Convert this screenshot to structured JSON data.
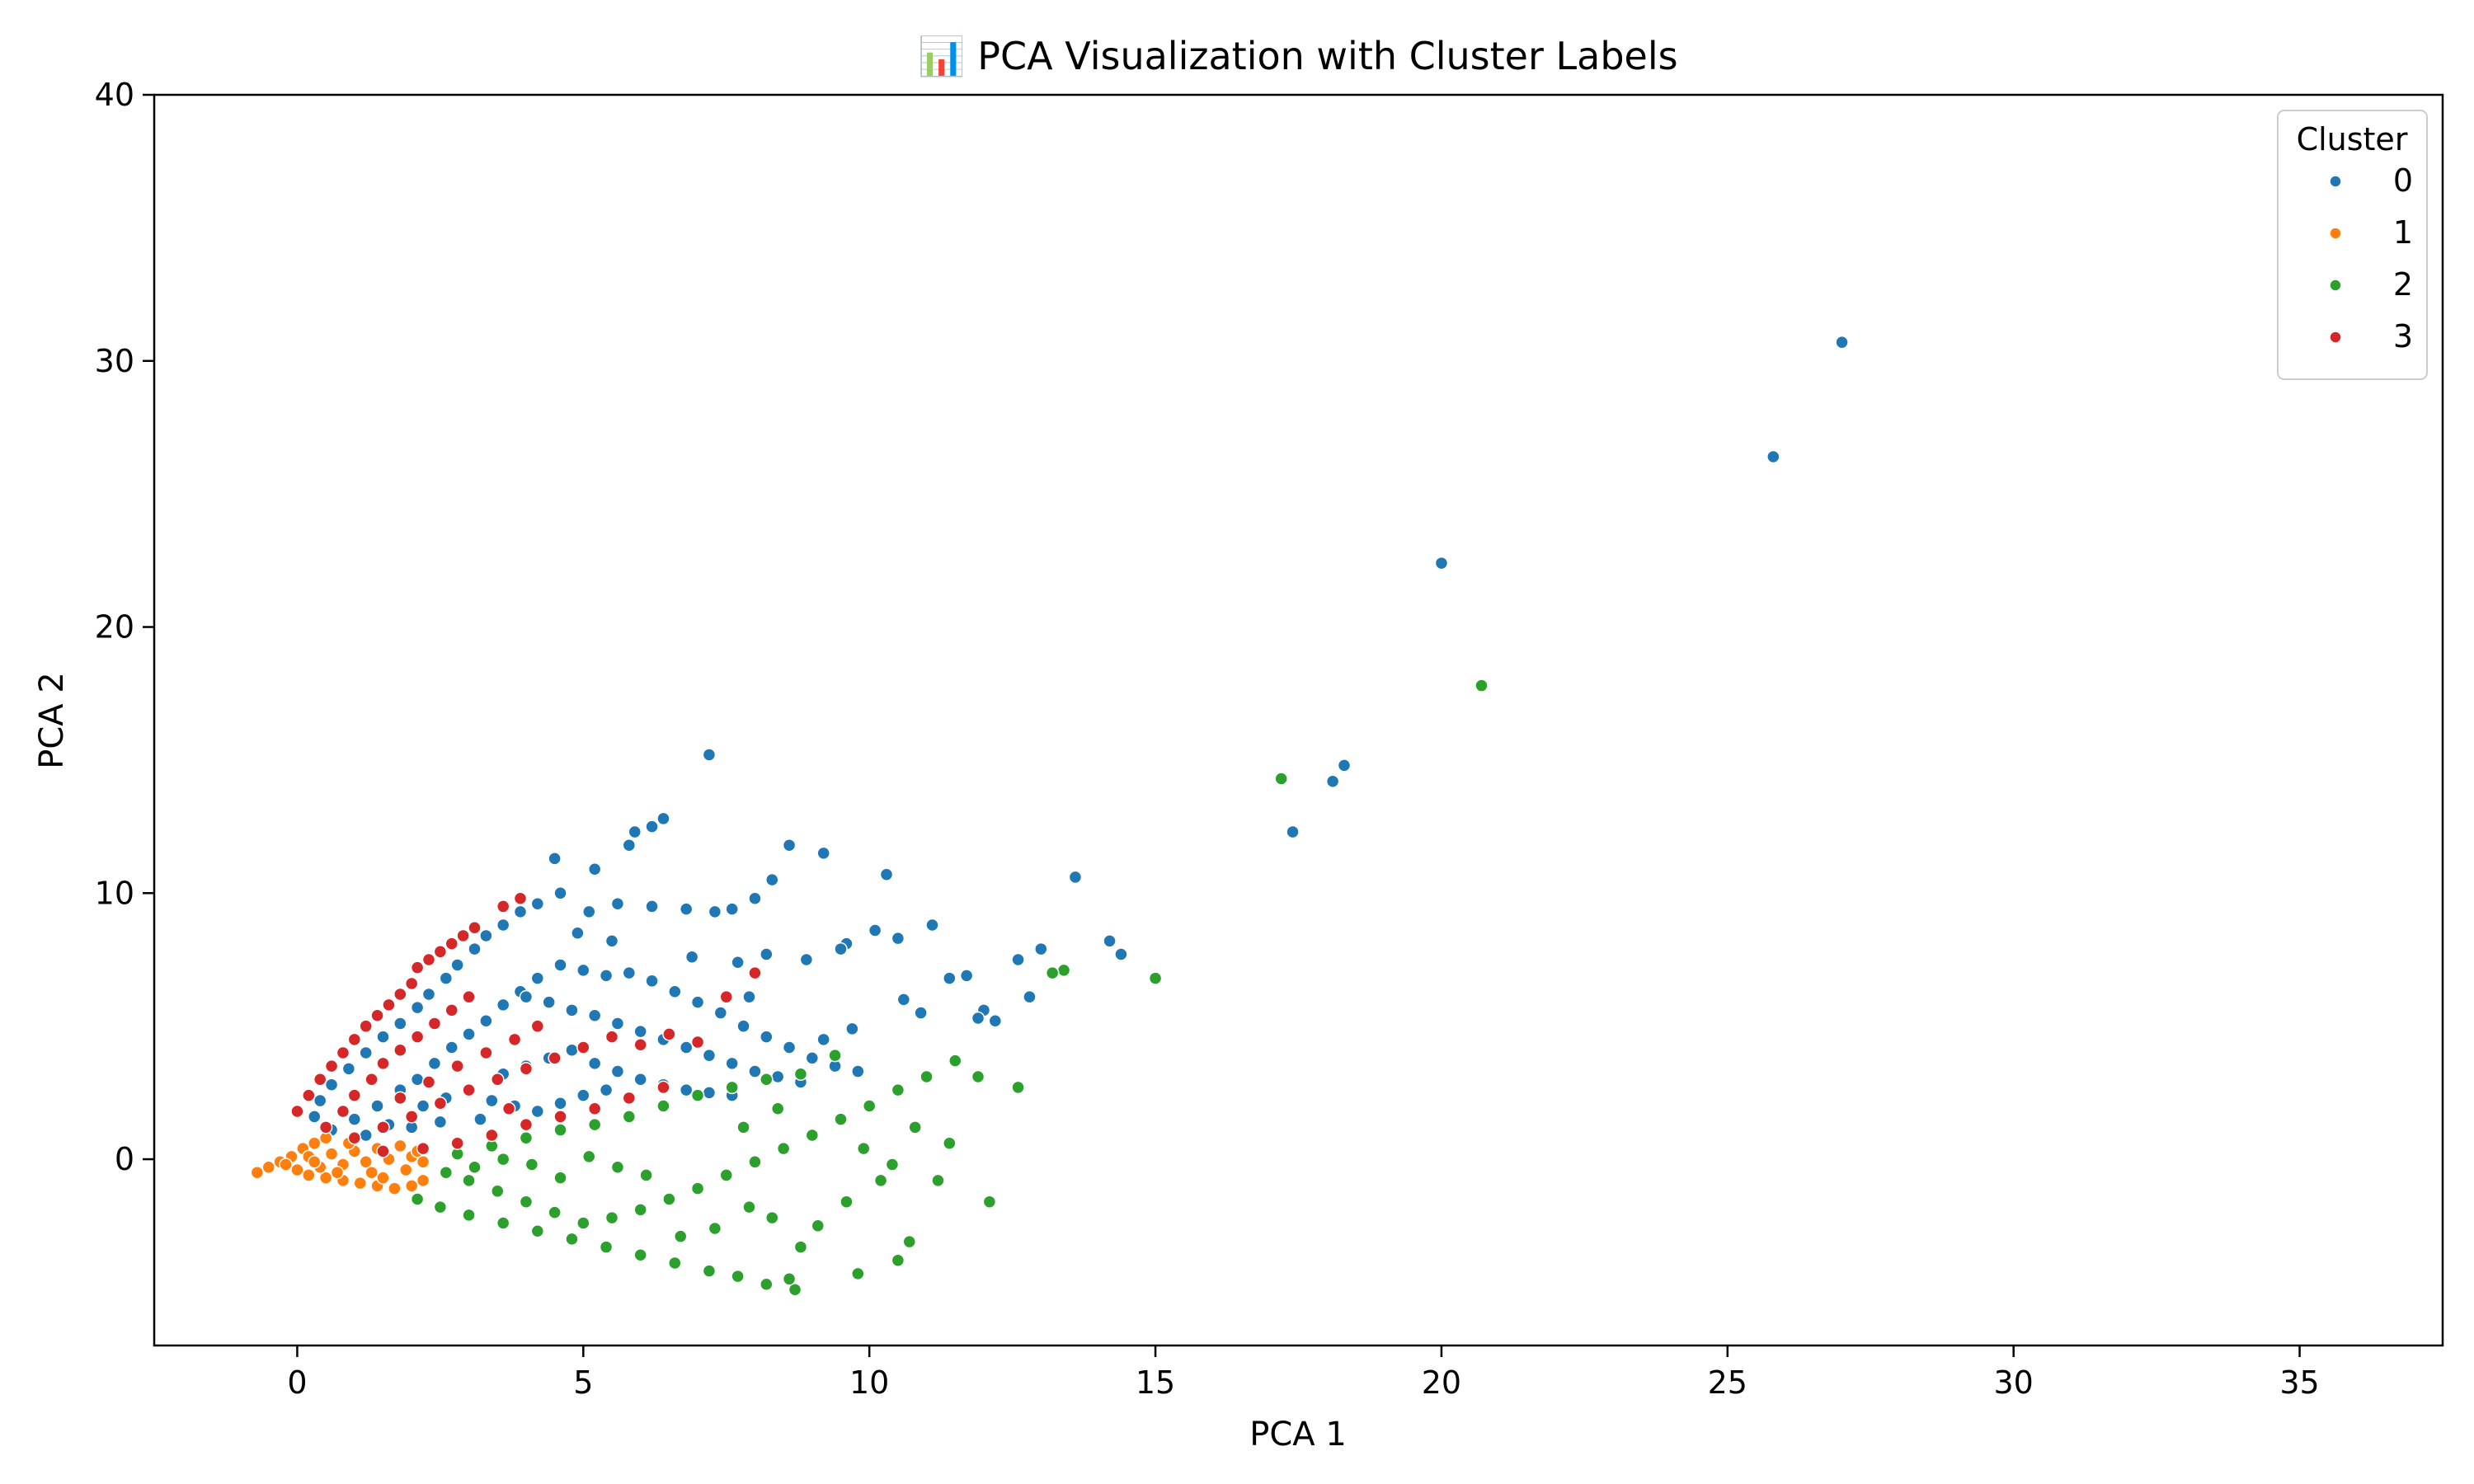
{
  "chart_data": {
    "type": "scatter",
    "title": "📊 PCA Visualization with Cluster Labels",
    "xlabel": "PCA 1",
    "ylabel": "PCA 2",
    "xlim": [
      -2.5,
      37.5
    ],
    "ylim": [
      -7,
      40
    ],
    "xticks": [
      0,
      5,
      10,
      15,
      20,
      25,
      30,
      35
    ],
    "yticks": [
      0,
      10,
      20,
      30,
      40
    ],
    "grid": false,
    "legend": {
      "title": "Cluster",
      "placement": "top-right"
    },
    "series": [
      {
        "name": "0",
        "color": "#1f77b4",
        "points": [
          [
            27.0,
            30.7
          ],
          [
            25.8,
            26.4
          ],
          [
            20.0,
            22.4
          ],
          [
            18.3,
            14.8
          ],
          [
            18.1,
            14.2
          ],
          [
            17.4,
            12.3
          ],
          [
            7.2,
            15.2
          ],
          [
            14.2,
            8.2
          ],
          [
            14.4,
            7.7
          ],
          [
            13.6,
            10.6
          ],
          [
            12.6,
            7.5
          ],
          [
            13.0,
            7.9
          ],
          [
            12.0,
            5.6
          ],
          [
            11.1,
            8.8
          ],
          [
            10.3,
            10.7
          ],
          [
            10.5,
            8.3
          ],
          [
            9.2,
            11.5
          ],
          [
            8.6,
            11.8
          ],
          [
            6.4,
            12.8
          ],
          [
            6.2,
            12.5
          ],
          [
            5.9,
            12.3
          ],
          [
            5.8,
            11.8
          ],
          [
            5.2,
            10.9
          ],
          [
            4.5,
            11.3
          ],
          [
            11.7,
            6.9
          ],
          [
            12.2,
            5.2
          ],
          [
            12.8,
            6.1
          ],
          [
            11.4,
            6.8
          ],
          [
            10.9,
            5.5
          ],
          [
            10.1,
            8.6
          ],
          [
            9.6,
            8.1
          ],
          [
            8.9,
            7.5
          ],
          [
            8.2,
            7.7
          ],
          [
            7.7,
            7.4
          ],
          [
            7.3,
            9.3
          ],
          [
            7.6,
            9.4
          ],
          [
            8.0,
            9.8
          ],
          [
            8.3,
            10.5
          ],
          [
            6.8,
            9.4
          ],
          [
            6.2,
            9.5
          ],
          [
            5.6,
            9.6
          ],
          [
            5.1,
            9.3
          ],
          [
            4.6,
            10.0
          ],
          [
            4.2,
            9.6
          ],
          [
            3.9,
            9.3
          ],
          [
            3.6,
            8.8
          ],
          [
            3.3,
            8.4
          ],
          [
            3.1,
            7.9
          ],
          [
            2.8,
            7.3
          ],
          [
            2.6,
            6.8
          ],
          [
            2.3,
            6.2
          ],
          [
            2.1,
            5.7
          ],
          [
            1.8,
            5.1
          ],
          [
            1.5,
            4.6
          ],
          [
            1.2,
            4.0
          ],
          [
            0.9,
            3.4
          ],
          [
            0.6,
            2.8
          ],
          [
            0.4,
            2.2
          ],
          [
            0.3,
            1.6
          ],
          [
            0.6,
            1.1
          ],
          [
            1.0,
            1.5
          ],
          [
            1.4,
            2.0
          ],
          [
            1.8,
            2.6
          ],
          [
            2.1,
            3.0
          ],
          [
            2.4,
            3.6
          ],
          [
            2.7,
            4.2
          ],
          [
            3.0,
            4.7
          ],
          [
            3.3,
            5.2
          ],
          [
            3.6,
            5.8
          ],
          [
            3.9,
            6.3
          ],
          [
            4.2,
            6.8
          ],
          [
            4.6,
            7.3
          ],
          [
            5.0,
            7.1
          ],
          [
            5.4,
            6.9
          ],
          [
            5.8,
            7.0
          ],
          [
            6.2,
            6.7
          ],
          [
            6.6,
            6.3
          ],
          [
            7.0,
            5.9
          ],
          [
            7.4,
            5.5
          ],
          [
            7.8,
            5.0
          ],
          [
            8.2,
            4.6
          ],
          [
            8.6,
            4.2
          ],
          [
            9.0,
            3.8
          ],
          [
            9.4,
            3.5
          ],
          [
            9.8,
            3.3
          ],
          [
            8.8,
            2.9
          ],
          [
            8.4,
            3.1
          ],
          [
            8.0,
            3.3
          ],
          [
            7.6,
            3.6
          ],
          [
            7.2,
            3.9
          ],
          [
            6.8,
            4.2
          ],
          [
            6.4,
            4.5
          ],
          [
            6.0,
            4.8
          ],
          [
            5.6,
            5.1
          ],
          [
            5.2,
            5.4
          ],
          [
            4.8,
            5.6
          ],
          [
            4.4,
            5.9
          ],
          [
            4.0,
            6.1
          ],
          [
            3.6,
            3.2
          ],
          [
            4.0,
            3.5
          ],
          [
            4.4,
            3.8
          ],
          [
            4.8,
            4.1
          ],
          [
            5.2,
            3.6
          ],
          [
            5.6,
            3.3
          ],
          [
            6.0,
            3.0
          ],
          [
            6.4,
            2.8
          ],
          [
            6.8,
            2.6
          ],
          [
            7.2,
            2.5
          ],
          [
            7.6,
            2.4
          ],
          [
            2.2,
            2.0
          ],
          [
            2.6,
            2.3
          ],
          [
            3.0,
            2.6
          ],
          [
            3.4,
            2.2
          ],
          [
            3.8,
            2.0
          ],
          [
            4.2,
            1.8
          ],
          [
            4.6,
            2.1
          ],
          [
            5.0,
            2.4
          ],
          [
            5.4,
            2.6
          ],
          [
            2.0,
            1.2
          ],
          [
            2.5,
            1.4
          ],
          [
            3.2,
            1.5
          ],
          [
            1.2,
            0.9
          ],
          [
            1.6,
            1.3
          ],
          [
            9.2,
            4.5
          ],
          [
            9.7,
            4.9
          ],
          [
            10.6,
            6.0
          ],
          [
            11.9,
            5.3
          ],
          [
            9.5,
            7.9
          ],
          [
            7.9,
            6.1
          ],
          [
            6.9,
            7.6
          ],
          [
            5.5,
            8.2
          ],
          [
            4.9,
            8.5
          ]
        ]
      },
      {
        "name": "1",
        "color": "#ff7f0e",
        "points": [
          [
            -0.7,
            -0.5
          ],
          [
            -0.5,
            -0.3
          ],
          [
            -0.3,
            -0.1
          ],
          [
            -0.1,
            0.1
          ],
          [
            0.1,
            0.4
          ],
          [
            0.3,
            0.6
          ],
          [
            0.5,
            0.8
          ],
          [
            0.2,
            -0.6
          ],
          [
            0.5,
            -0.7
          ],
          [
            0.8,
            -0.8
          ],
          [
            1.1,
            -0.9
          ],
          [
            1.4,
            -1.0
          ],
          [
            1.7,
            -1.1
          ],
          [
            2.0,
            -1.0
          ],
          [
            2.2,
            -0.8
          ],
          [
            0.0,
            -0.4
          ],
          [
            0.4,
            -0.3
          ],
          [
            0.8,
            -0.2
          ],
          [
            1.2,
            -0.1
          ],
          [
            1.6,
            0.0
          ],
          [
            2.0,
            0.1
          ],
          [
            0.2,
            0.1
          ],
          [
            0.6,
            0.2
          ],
          [
            1.0,
            0.3
          ],
          [
            1.4,
            0.4
          ],
          [
            1.8,
            0.5
          ],
          [
            0.7,
            -0.5
          ],
          [
            1.3,
            -0.5
          ],
          [
            1.9,
            -0.4
          ],
          [
            2.2,
            -0.1
          ],
          [
            0.9,
            0.6
          ],
          [
            -0.2,
            -0.2
          ],
          [
            0.3,
            -0.1
          ],
          [
            1.5,
            -0.7
          ],
          [
            2.1,
            0.3
          ]
        ]
      },
      {
        "name": "2",
        "color": "#2ca02c",
        "points": [
          [
            20.7,
            17.8
          ],
          [
            17.2,
            14.3
          ],
          [
            15.0,
            6.8
          ],
          [
            13.4,
            7.1
          ],
          [
            13.2,
            7.0
          ],
          [
            12.6,
            2.7
          ],
          [
            12.1,
            -1.6
          ],
          [
            11.2,
            -0.8
          ],
          [
            10.7,
            -3.1
          ],
          [
            10.5,
            -3.8
          ],
          [
            9.8,
            -4.3
          ],
          [
            8.7,
            -4.9
          ],
          [
            8.6,
            -4.5
          ],
          [
            8.2,
            -4.7
          ],
          [
            7.7,
            -4.4
          ],
          [
            7.2,
            -4.2
          ],
          [
            6.6,
            -3.9
          ],
          [
            6.0,
            -3.6
          ],
          [
            5.4,
            -3.3
          ],
          [
            4.8,
            -3.0
          ],
          [
            4.2,
            -2.7
          ],
          [
            3.6,
            -2.4
          ],
          [
            3.0,
            -2.1
          ],
          [
            2.5,
            -1.8
          ],
          [
            2.1,
            -1.5
          ],
          [
            11.9,
            3.1
          ],
          [
            11.5,
            3.7
          ],
          [
            11.0,
            3.1
          ],
          [
            10.5,
            2.6
          ],
          [
            10.0,
            2.0
          ],
          [
            9.5,
            1.5
          ],
          [
            9.0,
            0.9
          ],
          [
            8.5,
            0.4
          ],
          [
            8.0,
            -0.1
          ],
          [
            7.5,
            -0.6
          ],
          [
            7.0,
            -1.1
          ],
          [
            6.5,
            -1.5
          ],
          [
            6.0,
            -1.9
          ],
          [
            5.5,
            -2.2
          ],
          [
            5.0,
            -2.4
          ],
          [
            4.5,
            -2.0
          ],
          [
            4.0,
            -1.6
          ],
          [
            3.5,
            -1.2
          ],
          [
            3.0,
            -0.8
          ],
          [
            2.6,
            -0.5
          ],
          [
            2.8,
            0.2
          ],
          [
            3.4,
            0.5
          ],
          [
            4.0,
            0.8
          ],
          [
            4.6,
            1.1
          ],
          [
            5.2,
            1.3
          ],
          [
            5.8,
            1.6
          ],
          [
            6.4,
            2.0
          ],
          [
            7.0,
            2.4
          ],
          [
            7.6,
            2.7
          ],
          [
            8.2,
            3.0
          ],
          [
            8.8,
            3.2
          ],
          [
            9.4,
            3.9
          ],
          [
            10.8,
            1.2
          ],
          [
            11.4,
            0.6
          ],
          [
            10.2,
            -0.8
          ],
          [
            9.6,
            -1.6
          ],
          [
            9.1,
            -2.5
          ],
          [
            8.8,
            -3.3
          ],
          [
            8.3,
            -2.2
          ],
          [
            7.9,
            -1.8
          ],
          [
            7.3,
            -2.6
          ],
          [
            6.7,
            -2.9
          ],
          [
            6.1,
            -0.6
          ],
          [
            5.6,
            -0.3
          ],
          [
            5.1,
            0.1
          ],
          [
            4.6,
            -0.7
          ],
          [
            4.1,
            -0.2
          ],
          [
            3.6,
            0.0
          ],
          [
            3.1,
            -0.3
          ],
          [
            9.9,
            0.4
          ],
          [
            10.4,
            -0.2
          ],
          [
            8.4,
            1.9
          ],
          [
            7.8,
            1.2
          ]
        ]
      },
      {
        "name": "3",
        "color": "#d62728",
        "points": [
          [
            3.1,
            8.7
          ],
          [
            2.9,
            8.4
          ],
          [
            2.7,
            8.1
          ],
          [
            2.5,
            7.8
          ],
          [
            2.3,
            7.5
          ],
          [
            2.1,
            7.2
          ],
          [
            2.0,
            6.6
          ],
          [
            1.8,
            6.2
          ],
          [
            1.6,
            5.8
          ],
          [
            1.4,
            5.4
          ],
          [
            1.2,
            5.0
          ],
          [
            1.0,
            4.5
          ],
          [
            0.8,
            4.0
          ],
          [
            0.6,
            3.5
          ],
          [
            0.4,
            3.0
          ],
          [
            0.2,
            2.4
          ],
          [
            0.0,
            1.8
          ],
          [
            3.6,
            9.5
          ],
          [
            3.9,
            9.8
          ],
          [
            0.5,
            1.2
          ],
          [
            0.8,
            1.8
          ],
          [
            1.0,
            2.4
          ],
          [
            1.3,
            3.0
          ],
          [
            1.5,
            3.6
          ],
          [
            1.8,
            4.1
          ],
          [
            2.1,
            4.6
          ],
          [
            2.4,
            5.1
          ],
          [
            2.7,
            5.6
          ],
          [
            3.0,
            6.1
          ],
          [
            1.0,
            0.8
          ],
          [
            1.5,
            1.2
          ],
          [
            2.0,
            1.6
          ],
          [
            2.5,
            2.1
          ],
          [
            3.0,
            2.6
          ],
          [
            3.5,
            3.0
          ],
          [
            4.0,
            3.4
          ],
          [
            4.5,
            3.8
          ],
          [
            5.0,
            4.2
          ],
          [
            5.5,
            4.6
          ],
          [
            6.0,
            4.3
          ],
          [
            6.5,
            4.7
          ],
          [
            7.0,
            4.4
          ],
          [
            7.5,
            6.1
          ],
          [
            8.0,
            7.0
          ],
          [
            4.2,
            5.0
          ],
          [
            3.8,
            4.5
          ],
          [
            3.3,
            4.0
          ],
          [
            2.8,
            3.5
          ],
          [
            2.3,
            2.9
          ],
          [
            1.8,
            2.3
          ],
          [
            2.2,
            0.4
          ],
          [
            2.8,
            0.6
          ],
          [
            3.4,
            0.9
          ],
          [
            4.0,
            1.3
          ],
          [
            4.6,
            1.6
          ],
          [
            5.2,
            1.9
          ],
          [
            5.8,
            2.3
          ],
          [
            6.4,
            2.7
          ],
          [
            1.5,
            0.3
          ],
          [
            3.7,
            1.9
          ]
        ]
      }
    ]
  }
}
